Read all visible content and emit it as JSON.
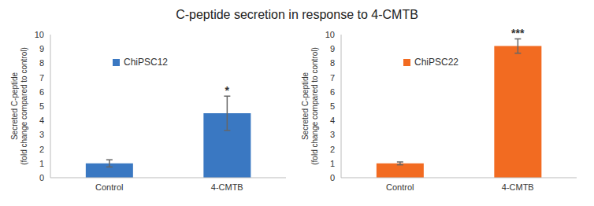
{
  "title": "C-peptide secretion in response to 4-CMTB",
  "chart_data": [
    {
      "type": "bar",
      "y_label": "Secreted C-peptide\n(fold change compared to control)",
      "categories": [
        "Control",
        "4-CMTB"
      ],
      "series": [
        {
          "name": "ChiPSC12",
          "color": "#3a78c2",
          "values": [
            1.0,
            4.5
          ],
          "errors": [
            0.25,
            1.2
          ]
        }
      ],
      "ylim": [
        0,
        10
      ],
      "yticks": [
        0,
        1,
        2,
        3,
        4,
        5,
        6,
        7,
        8,
        9,
        10
      ],
      "legend": "top",
      "annotations": [
        {
          "category": "4-CMTB",
          "text": "*"
        }
      ]
    },
    {
      "type": "bar",
      "y_label": "Secreted C-peptide\n(fold change compared to control)",
      "categories": [
        "Control",
        "4-CMTB"
      ],
      "series": [
        {
          "name": "ChiPSC22",
          "color": "#f26b21",
          "values": [
            1.0,
            9.2
          ],
          "errors": [
            0.1,
            0.5
          ]
        }
      ],
      "ylim": [
        0,
        10
      ],
      "yticks": [
        0,
        1,
        2,
        3,
        4,
        5,
        6,
        7,
        8,
        9,
        10
      ],
      "legend": "top",
      "annotations": [
        {
          "category": "4-CMTB",
          "text": "***"
        }
      ]
    }
  ]
}
